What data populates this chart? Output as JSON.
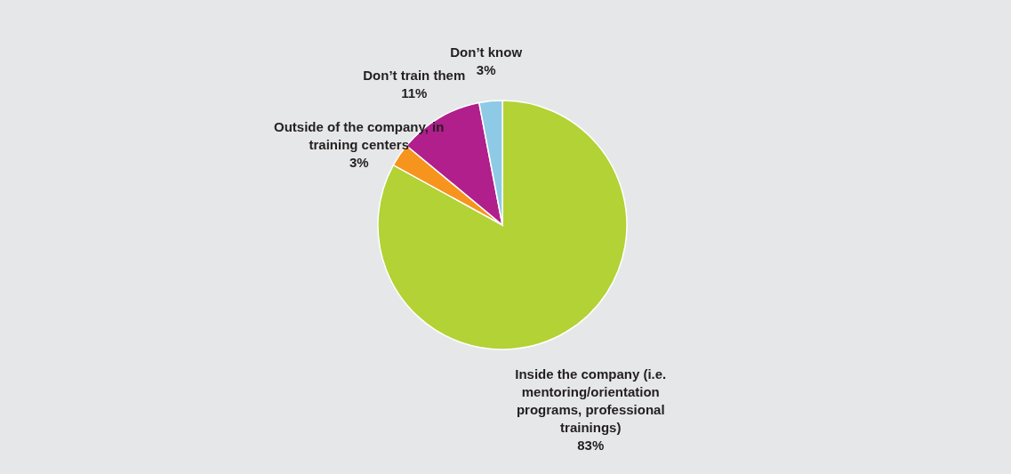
{
  "chart_data": {
    "type": "pie",
    "categories": [
      "Inside the company (i.e. mentoring/orientation programs, professional trainings)",
      "Outside of the company, in training centers",
      "Don’t train them",
      "Don’t know"
    ],
    "values": [
      83,
      3,
      11,
      3
    ],
    "colors": [
      "#b2d235",
      "#f7941d",
      "#b01f8c",
      "#8ecae6"
    ],
    "value_labels": [
      "83%",
      "3%",
      "11%",
      "3%"
    ],
    "legend": false
  }
}
